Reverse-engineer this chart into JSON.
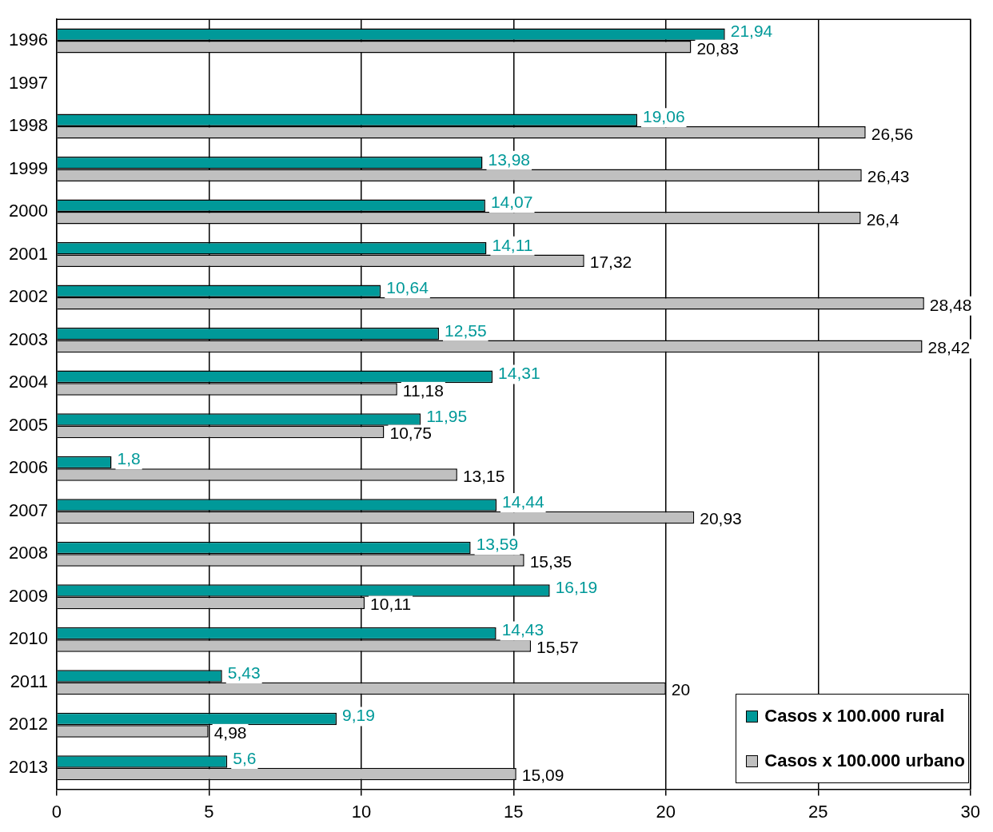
{
  "chart_data": {
    "type": "bar",
    "orientation": "horizontal",
    "categories": [
      "1996",
      "1997",
      "1998",
      "1999",
      "2000",
      "2001",
      "2002",
      "2003",
      "2004",
      "2005",
      "2006",
      "2007",
      "2008",
      "2009",
      "2010",
      "2011",
      "2012",
      "2013"
    ],
    "series": [
      {
        "name": "Casos x 100.000 rural",
        "color": "#009999",
        "values": [
          21.94,
          null,
          19.06,
          13.98,
          14.07,
          14.11,
          10.64,
          12.55,
          14.31,
          11.95,
          1.8,
          14.44,
          13.59,
          16.19,
          14.43,
          5.43,
          9.19,
          5.6
        ],
        "value_labels": [
          "21,94",
          null,
          "19,06",
          "13,98",
          "14,07",
          "14,11",
          "10,64",
          "12,55",
          "14,31",
          "11,95",
          "1,8",
          "14,44",
          "13,59",
          "16,19",
          "14,43",
          "5,43",
          "9,19",
          "5,6"
        ]
      },
      {
        "name": "Casos x 100.000 urbano",
        "color": "#c0c0c0",
        "values": [
          20.83,
          null,
          26.56,
          26.43,
          26.4,
          17.32,
          28.48,
          28.42,
          11.18,
          10.75,
          13.15,
          20.93,
          15.35,
          10.11,
          15.57,
          20,
          4.98,
          15.09
        ],
        "value_labels": [
          "20,83",
          null,
          "26,56",
          "26,43",
          "26,4",
          "17,32",
          "28,48",
          "28,42",
          "11,18",
          "10,75",
          "13,15",
          "20,93",
          "15,35",
          "10,11",
          "15,57",
          "20",
          "4,98",
          "15,09"
        ]
      }
    ],
    "xlim": [
      0,
      30
    ],
    "xticks": [
      0,
      5,
      10,
      15,
      20,
      25,
      30
    ],
    "grid": "x",
    "legend": "bottom right"
  }
}
